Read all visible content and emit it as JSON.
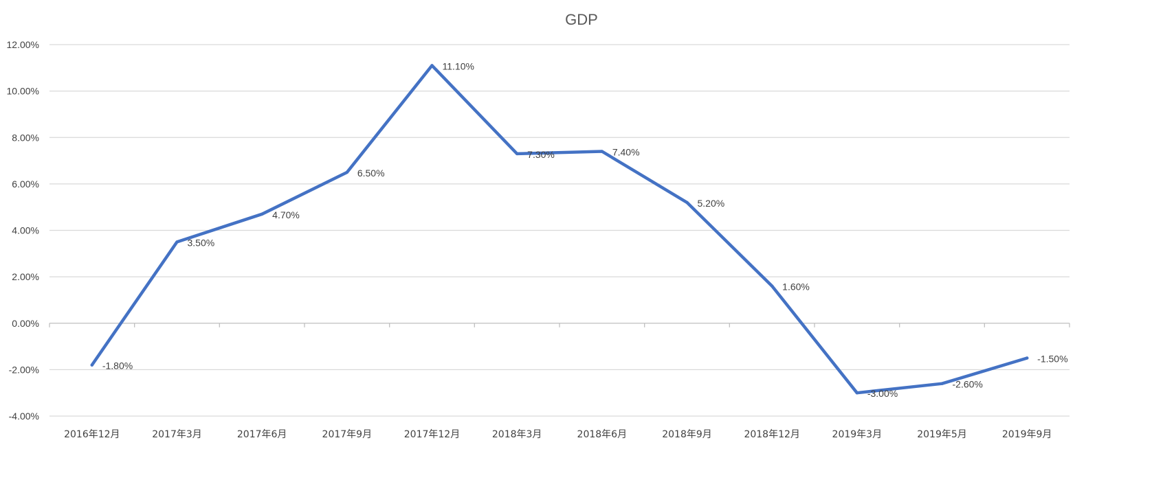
{
  "chart_data": {
    "type": "line",
    "title": "GDP",
    "xlabel": "",
    "ylabel": "",
    "categories": [
      "2016年12月",
      "2017年3月",
      "2017年6月",
      "2017年9月",
      "2017年12月",
      "2018年3月",
      "2018年6月",
      "2018年9月",
      "2018年12月",
      "2019年3月",
      "2019年5月",
      "2019年9月"
    ],
    "series": [
      {
        "values": [
          -1.8,
          3.5,
          4.7,
          6.5,
          11.1,
          7.3,
          7.4,
          5.2,
          1.6,
          -3.0,
          -2.6,
          -1.5
        ],
        "data_labels": [
          "-1.80%",
          "3.50%",
          "4.70%",
          "6.50%",
          "11.10%",
          "7.30%",
          "7.40%",
          "5.20%",
          "1.60%",
          "-3.00%",
          "-2.60%",
          "-1.50%"
        ],
        "color": "#4472C4"
      }
    ],
    "ylim": [
      -4,
      12
    ],
    "yticks": [
      12,
      10,
      8,
      6,
      4,
      2,
      0,
      -2,
      -4
    ],
    "ytick_labels": [
      "12.00%",
      "10.00%",
      "8.00%",
      "6.00%",
      "4.00%",
      "2.00%",
      "0.00%",
      "-2.00%",
      "-4.00%"
    ],
    "grid": true,
    "legend": "none",
    "gridline_color": "#D9D9D9",
    "axis_color": "#BFBFBF"
  }
}
